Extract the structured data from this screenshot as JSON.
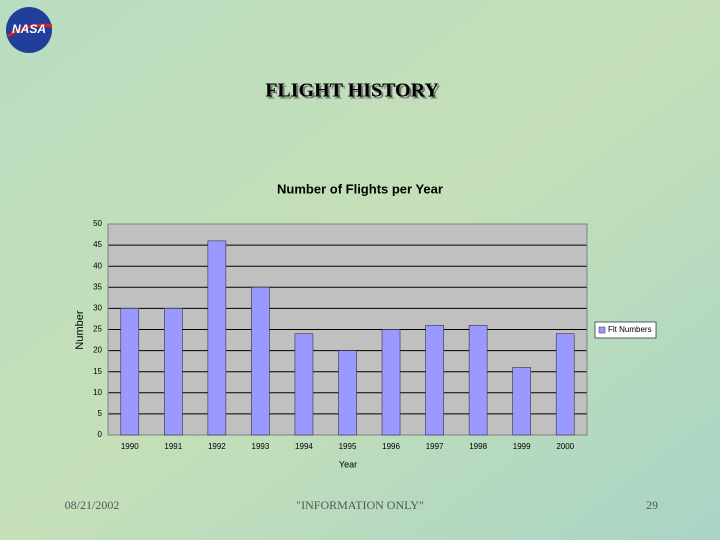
{
  "slide": {
    "logo": "NASA",
    "title": "FLIGHT HISTORY",
    "footer_date": "08/21/2002",
    "footer_note": "\"INFORMATION ONLY\"",
    "page_number": "29"
  },
  "chart_data": {
    "type": "bar",
    "title": "Number of Flights per Year",
    "x_label": "Year",
    "y_label": "Number",
    "categories": [
      "1990",
      "1991",
      "1992",
      "1993",
      "1994",
      "1995",
      "1996",
      "1997",
      "1998",
      "1999",
      "2000"
    ],
    "series": [
      {
        "name": "Flt Numbers",
        "color": "#9999ff",
        "values": [
          30,
          30,
          46,
          35,
          24,
          20,
          25,
          26,
          26,
          16,
          24
        ]
      }
    ],
    "ylim": [
      0,
      50
    ],
    "yticks": [
      0,
      5,
      10,
      15,
      20,
      25,
      30,
      35,
      40,
      45,
      50
    ],
    "grid": true,
    "legend": "right"
  }
}
